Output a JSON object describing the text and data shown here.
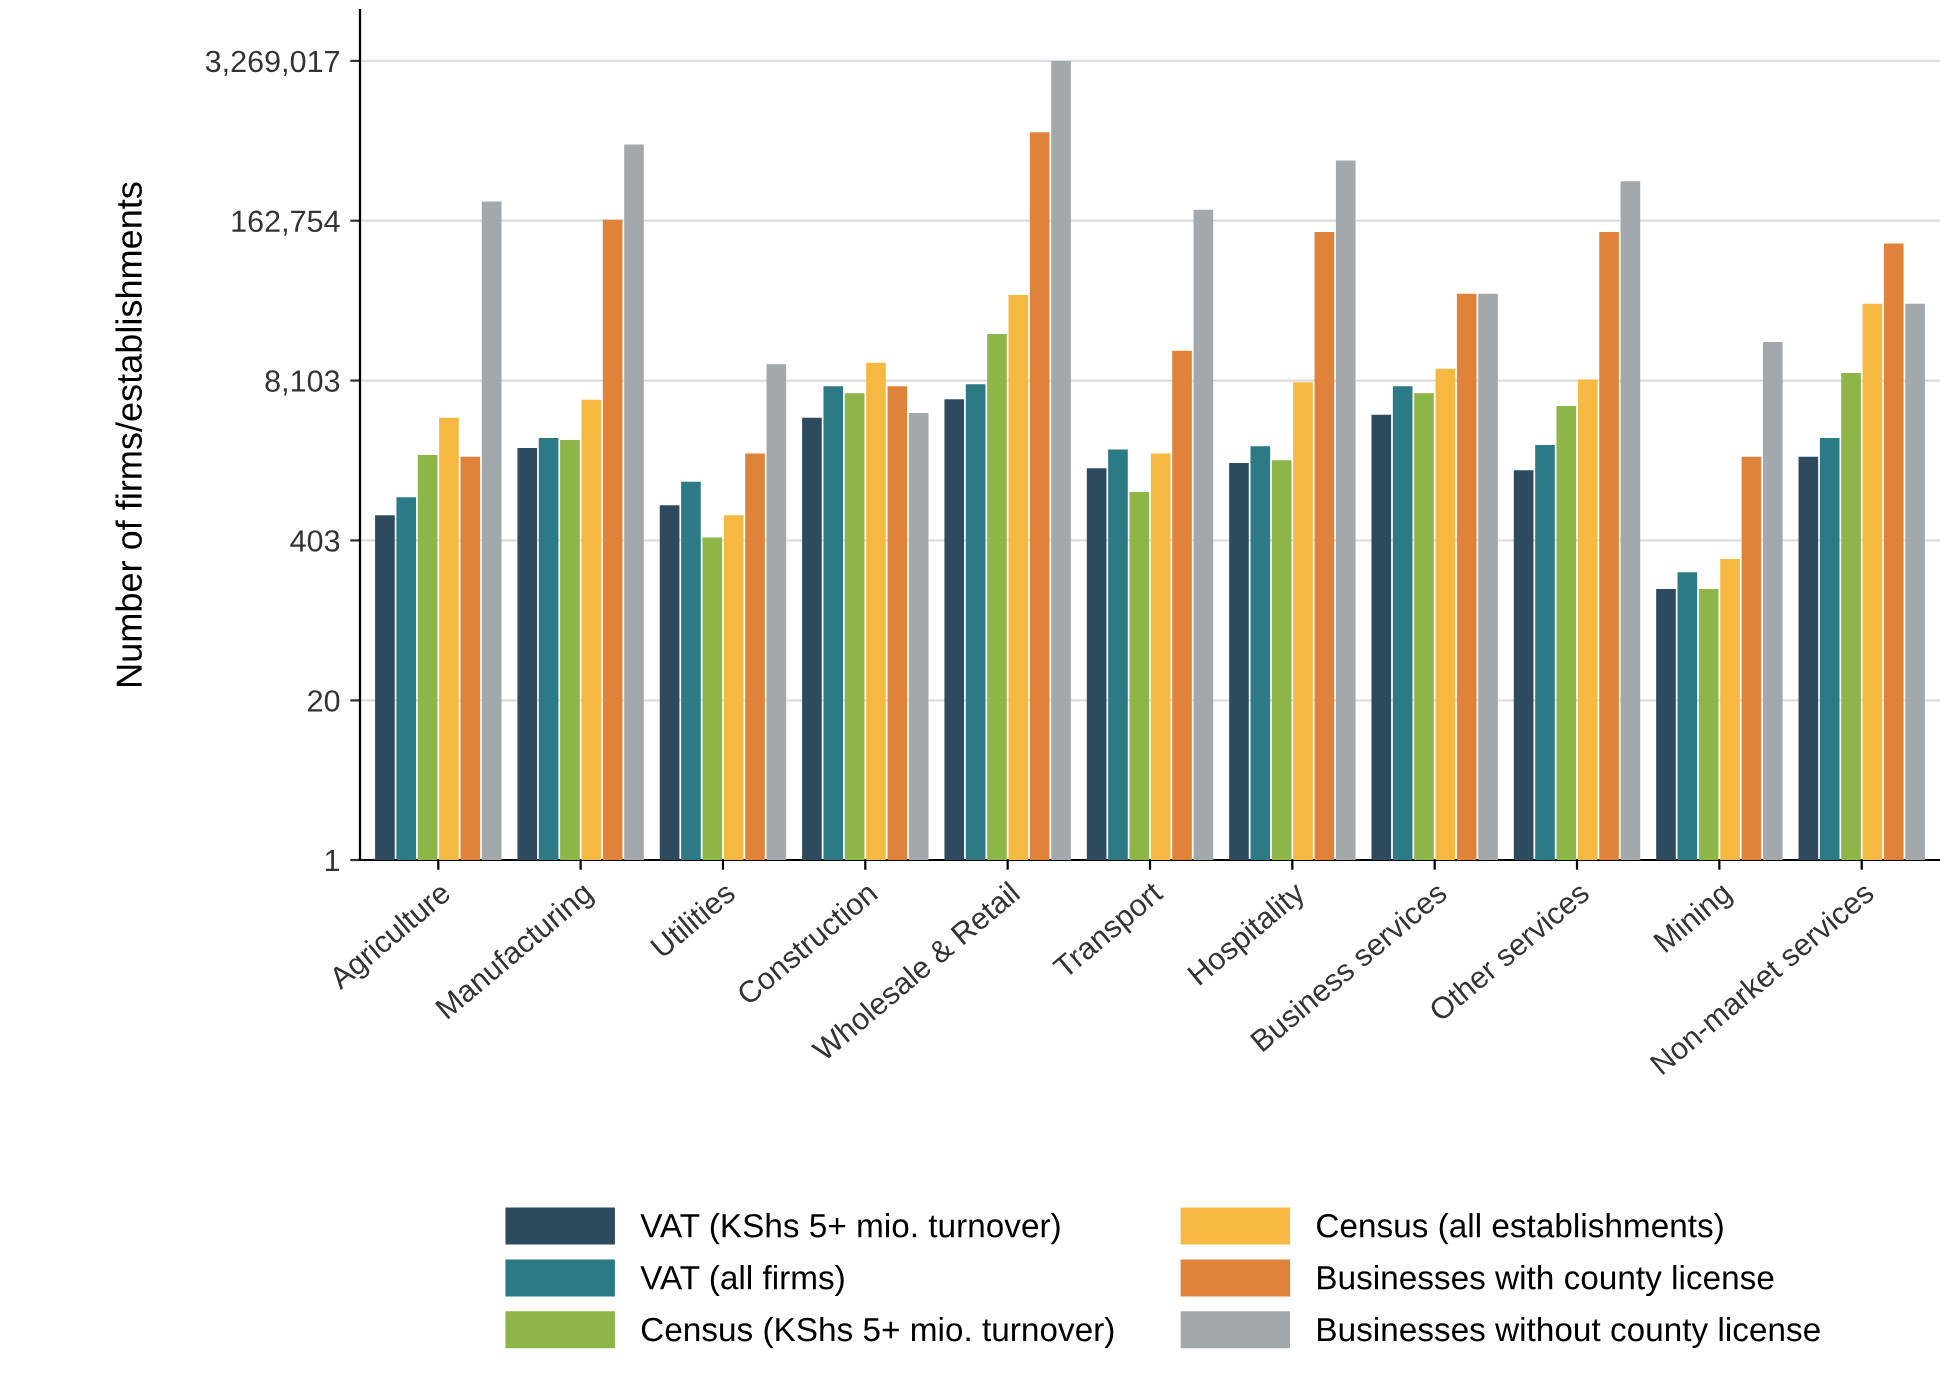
{
  "chart_data": {
    "type": "bar",
    "ylabel": "Number of firms/establishments",
    "log": "y",
    "categories": [
      "Agriculture",
      "Manufacturing",
      "Utilities",
      "Construction",
      "Wholesale & Retail",
      "Transport",
      "Hospitality",
      "Business services",
      "Other services",
      "Mining",
      "Non-market services"
    ],
    "series": [
      {
        "name": "VAT (KShs 5+ mio. turnover)",
        "color": "#2e4a5f",
        "values": [
          645,
          2280,
          780,
          4020,
          5700,
          1560,
          1720,
          4270,
          1500,
          161,
          1940
        ]
      },
      {
        "name": "VAT (all firms)",
        "color": "#2b7a86",
        "values": [
          907,
          2750,
          1210,
          7270,
          7550,
          2220,
          2360,
          7270,
          2420,
          221,
          2750
        ]
      },
      {
        "name": "Census (KShs 5+ mio. turnover)",
        "color": "#8db548",
        "values": [
          2000,
          2650,
          425,
          6380,
          19400,
          1000,
          1810,
          6380,
          5020,
          161,
          9330
        ]
      },
      {
        "name": "Census (all establishments)",
        "color": "#f5b942",
        "values": [
          4020,
          5640,
          645,
          11300,
          40400,
          2060,
          7860,
          10100,
          8250,
          284,
          34200
        ]
      },
      {
        "name": "Businesses with county license",
        "color": "#e0833a",
        "values": [
          1940,
          166000,
          2060,
          7270,
          855000,
          14200,
          132000,
          41400,
          132000,
          1940,
          106000
        ]
      },
      {
        "name": "Businesses without county license",
        "color": "#a3a8ad",
        "values": [
          233000,
          680000,
          11000,
          4400,
          3270000,
          200000,
          505000,
          41400,
          341000,
          16700,
          34200
        ]
      }
    ],
    "ylim": [
      1,
      8500000
    ],
    "yticks": [
      1,
      20,
      {
        "value": 403,
        "label": "403"
      },
      {
        "value": 8103,
        "label": "8,103"
      },
      {
        "value": 162754,
        "label": "162,754"
      },
      {
        "value": 3269017,
        "label": "3,269,017"
      }
    ],
    "grid": "y",
    "legend": "bottom"
  }
}
